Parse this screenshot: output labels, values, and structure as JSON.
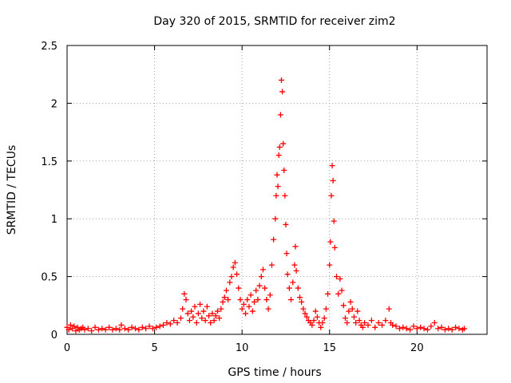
{
  "chart_data": {
    "type": "scatter",
    "title": "Day 320 of 2015, SRMTID for receiver zim2",
    "xlabel": "GPS time / hours",
    "ylabel": "SRMTID / TECUs",
    "xlim": [
      0,
      24
    ],
    "ylim": [
      0,
      2.5
    ],
    "xticks": [
      0,
      5,
      10,
      15,
      20
    ],
    "yticks": [
      0,
      0.5,
      1,
      1.5,
      2,
      2.5
    ],
    "ytick_labels": [
      "0",
      "0.5",
      "1",
      "1.5",
      "2",
      "2.5"
    ],
    "grid": true,
    "marker": "+",
    "series": [
      {
        "name": "SRMTID",
        "color": "#ff0000",
        "points": [
          [
            0.0,
            0.06
          ],
          [
            0.1,
            0.04
          ],
          [
            0.2,
            0.08
          ],
          [
            0.3,
            0.05
          ],
          [
            0.4,
            0.07
          ],
          [
            0.5,
            0.03
          ],
          [
            0.6,
            0.06
          ],
          [
            0.7,
            0.04
          ],
          [
            0.8,
            0.05
          ],
          [
            0.9,
            0.06
          ],
          [
            1.0,
            0.04
          ],
          [
            1.2,
            0.05
          ],
          [
            1.4,
            0.03
          ],
          [
            1.6,
            0.06
          ],
          [
            1.8,
            0.04
          ],
          [
            2.0,
            0.05
          ],
          [
            2.2,
            0.04
          ],
          [
            2.4,
            0.06
          ],
          [
            2.6,
            0.04
          ],
          [
            2.8,
            0.05
          ],
          [
            3.0,
            0.04
          ],
          [
            3.1,
            0.08
          ],
          [
            3.3,
            0.05
          ],
          [
            3.5,
            0.04
          ],
          [
            3.7,
            0.06
          ],
          [
            3.9,
            0.05
          ],
          [
            4.1,
            0.04
          ],
          [
            4.3,
            0.06
          ],
          [
            4.5,
            0.05
          ],
          [
            4.7,
            0.07
          ],
          [
            4.9,
            0.05
          ],
          [
            5.1,
            0.06
          ],
          [
            5.3,
            0.07
          ],
          [
            5.5,
            0.08
          ],
          [
            5.7,
            0.1
          ],
          [
            5.9,
            0.09
          ],
          [
            6.1,
            0.12
          ],
          [
            6.3,
            0.1
          ],
          [
            6.5,
            0.14
          ],
          [
            6.6,
            0.22
          ],
          [
            6.7,
            0.35
          ],
          [
            6.8,
            0.3
          ],
          [
            6.9,
            0.18
          ],
          [
            7.0,
            0.12
          ],
          [
            7.1,
            0.2
          ],
          [
            7.2,
            0.15
          ],
          [
            7.3,
            0.24
          ],
          [
            7.4,
            0.1
          ],
          [
            7.5,
            0.18
          ],
          [
            7.6,
            0.26
          ],
          [
            7.7,
            0.14
          ],
          [
            7.8,
            0.2
          ],
          [
            7.9,
            0.12
          ],
          [
            8.0,
            0.24
          ],
          [
            8.1,
            0.16
          ],
          [
            8.2,
            0.1
          ],
          [
            8.3,
            0.18
          ],
          [
            8.4,
            0.12
          ],
          [
            8.5,
            0.16
          ],
          [
            8.6,
            0.2
          ],
          [
            8.7,
            0.14
          ],
          [
            8.8,
            0.22
          ],
          [
            8.9,
            0.28
          ],
          [
            9.0,
            0.32
          ],
          [
            9.1,
            0.38
          ],
          [
            9.2,
            0.3
          ],
          [
            9.3,
            0.45
          ],
          [
            9.4,
            0.5
          ],
          [
            9.5,
            0.58
          ],
          [
            9.6,
            0.62
          ],
          [
            9.7,
            0.52
          ],
          [
            9.8,
            0.4
          ],
          [
            9.9,
            0.3
          ],
          [
            10.0,
            0.22
          ],
          [
            10.1,
            0.26
          ],
          [
            10.2,
            0.18
          ],
          [
            10.3,
            0.3
          ],
          [
            10.4,
            0.24
          ],
          [
            10.5,
            0.34
          ],
          [
            10.6,
            0.2
          ],
          [
            10.7,
            0.28
          ],
          [
            10.8,
            0.38
          ],
          [
            10.9,
            0.3
          ],
          [
            11.0,
            0.42
          ],
          [
            11.1,
            0.5
          ],
          [
            11.2,
            0.56
          ],
          [
            11.3,
            0.4
          ],
          [
            11.4,
            0.3
          ],
          [
            11.5,
            0.22
          ],
          [
            11.6,
            0.34
          ],
          [
            11.7,
            0.6
          ],
          [
            11.8,
            0.82
          ],
          [
            11.9,
            1.0
          ],
          [
            11.95,
            1.2
          ],
          [
            12.0,
            1.38
          ],
          [
            12.05,
            1.28
          ],
          [
            12.1,
            1.55
          ],
          [
            12.15,
            1.62
          ],
          [
            12.2,
            1.9
          ],
          [
            12.25,
            2.2
          ],
          [
            12.3,
            2.1
          ],
          [
            12.35,
            1.65
          ],
          [
            12.4,
            1.42
          ],
          [
            12.45,
            1.2
          ],
          [
            12.5,
            0.95
          ],
          [
            12.55,
            0.7
          ],
          [
            12.6,
            0.52
          ],
          [
            12.7,
            0.4
          ],
          [
            12.8,
            0.3
          ],
          [
            12.9,
            0.45
          ],
          [
            13.0,
            0.6
          ],
          [
            13.05,
            0.76
          ],
          [
            13.1,
            0.55
          ],
          [
            13.2,
            0.4
          ],
          [
            13.3,
            0.32
          ],
          [
            13.4,
            0.28
          ],
          [
            13.5,
            0.22
          ],
          [
            13.6,
            0.18
          ],
          [
            13.7,
            0.15
          ],
          [
            13.8,
            0.12
          ],
          [
            13.9,
            0.1
          ],
          [
            14.0,
            0.08
          ],
          [
            14.1,
            0.12
          ],
          [
            14.2,
            0.2
          ],
          [
            14.3,
            0.15
          ],
          [
            14.4,
            0.1
          ],
          [
            14.5,
            0.06
          ],
          [
            14.6,
            0.1
          ],
          [
            14.7,
            0.14
          ],
          [
            14.8,
            0.22
          ],
          [
            14.9,
            0.35
          ],
          [
            15.0,
            0.6
          ],
          [
            15.05,
            0.8
          ],
          [
            15.1,
            1.2
          ],
          [
            15.15,
            1.46
          ],
          [
            15.2,
            1.33
          ],
          [
            15.25,
            0.98
          ],
          [
            15.3,
            0.75
          ],
          [
            15.4,
            0.5
          ],
          [
            15.5,
            0.35
          ],
          [
            15.6,
            0.48
          ],
          [
            15.7,
            0.38
          ],
          [
            15.8,
            0.25
          ],
          [
            15.9,
            0.14
          ],
          [
            16.0,
            0.1
          ],
          [
            16.1,
            0.2
          ],
          [
            16.2,
            0.28
          ],
          [
            16.3,
            0.22
          ],
          [
            16.4,
            0.15
          ],
          [
            16.5,
            0.1
          ],
          [
            16.6,
            0.2
          ],
          [
            16.7,
            0.12
          ],
          [
            16.8,
            0.08
          ],
          [
            16.9,
            0.06
          ],
          [
            17.0,
            0.1
          ],
          [
            17.2,
            0.08
          ],
          [
            17.4,
            0.12
          ],
          [
            17.6,
            0.06
          ],
          [
            17.8,
            0.1
          ],
          [
            18.0,
            0.08
          ],
          [
            18.2,
            0.12
          ],
          [
            18.4,
            0.22
          ],
          [
            18.5,
            0.1
          ],
          [
            18.6,
            0.08
          ],
          [
            18.8,
            0.07
          ],
          [
            19.0,
            0.05
          ],
          [
            19.2,
            0.06
          ],
          [
            19.4,
            0.05
          ],
          [
            19.6,
            0.04
          ],
          [
            19.8,
            0.07
          ],
          [
            20.0,
            0.05
          ],
          [
            20.2,
            0.06
          ],
          [
            20.4,
            0.05
          ],
          [
            20.6,
            0.04
          ],
          [
            20.8,
            0.07
          ],
          [
            21.0,
            0.1
          ],
          [
            21.2,
            0.05
          ],
          [
            21.4,
            0.06
          ],
          [
            21.6,
            0.04
          ],
          [
            21.8,
            0.05
          ],
          [
            22.0,
            0.04
          ],
          [
            22.2,
            0.06
          ],
          [
            22.4,
            0.05
          ],
          [
            22.6,
            0.04
          ],
          [
            22.7,
            0.05
          ]
        ]
      }
    ]
  }
}
